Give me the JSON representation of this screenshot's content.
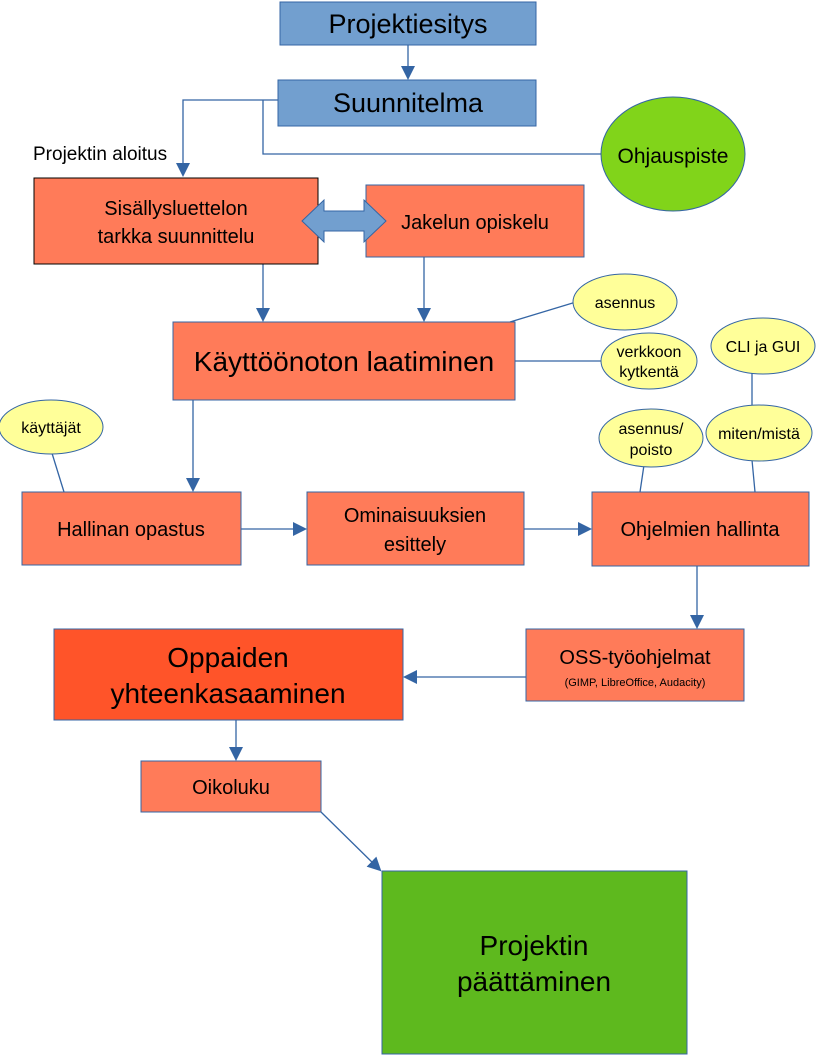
{
  "nodes": {
    "projektiesitys": "Projektiesitys",
    "suunnitelma": "Suunnitelma",
    "ohjauspiste": "Ohjauspiste",
    "projektin_aloitus": "Projektin aloitus",
    "sisallysluettelo": [
      "Sisällysluettelon",
      "tarkka suunnittelu"
    ],
    "jakelun_opiskelu": "Jakelun opiskelu",
    "kayttoonoton_laatiminen": "Käyttöönoton laatiminen",
    "asennus": "asennus",
    "verkkoon_kytkenta": [
      "verkkoon",
      "kytkentä"
    ],
    "cli_ja_gui": "CLI ja GUI",
    "kayttajat": "käyttäjät",
    "asennus_poisto": [
      "asennus/",
      "poisto"
    ],
    "miten_mista": "miten/mistä",
    "hallinan_opastus": "Hallinan opastus",
    "ominaisuuksien_esittely": [
      "Ominaisuuksien",
      "esittely"
    ],
    "ohjelmien_hallinta": "Ohjelmien hallinta",
    "oss_tyoohjelmat": "OSS-työohjelmat",
    "oss_examples": "(GIMP, LibreOffice, Audacity)",
    "oppaiden_yhteenkasaaminen": [
      "Oppaiden",
      "yhteenkasaaminen"
    ],
    "oikoluku": "Oikoluku",
    "projektin_paattaminen": [
      "Projektin",
      "päättäminen"
    ]
  },
  "colors": {
    "blue_box": "#729fcf",
    "blue_border": "#3465a4",
    "orange_box": "#ff7b59",
    "dark_orange_box": "#ff5429",
    "green_box": "#5eb91e",
    "green_ellipse": "#81d41a",
    "yellow_ellipse": "#ffff99",
    "connector": "#3465a4"
  }
}
